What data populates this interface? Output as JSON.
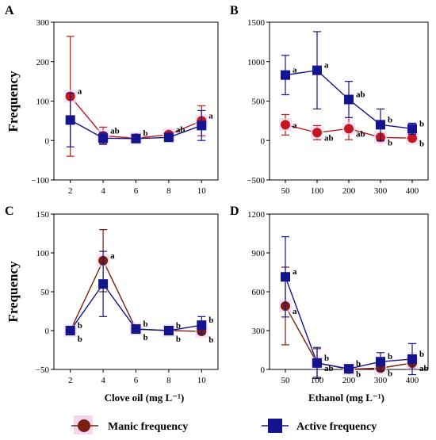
{
  "legend": {
    "manic_label": "Manic frequency",
    "active_label": "Active frequency"
  },
  "colors": {
    "manic_A_B": "#c0181e",
    "manic_C_D": "#7b1e12",
    "active": "#14148c",
    "halo": "#f1d6ee"
  },
  "y_title": "Frequency",
  "chart_data": [
    {
      "panel": "A",
      "type": "line",
      "xlabel": "",
      "ylabel": "Frequency",
      "x": [
        "2",
        "4",
        "6",
        "8",
        "10"
      ],
      "ylim": [
        -100,
        300
      ],
      "yticks": [
        -100,
        0,
        100,
        200,
        300
      ],
      "series": [
        {
          "name": "Manic frequency",
          "color_key": "manic_A_B",
          "marker": "circle",
          "values": [
            112,
            12,
            6,
            15,
            50
          ],
          "err": [
            152,
            22,
            5,
            8,
            38
          ]
        },
        {
          "name": "Active frequency",
          "color_key": "active",
          "marker": "square",
          "values": [
            52,
            6,
            5,
            8,
            38
          ],
          "err": [
            68,
            14,
            4,
            6,
            38
          ]
        }
      ],
      "annotations": [
        "a",
        "ab",
        "b",
        "ab",
        "a"
      ]
    },
    {
      "panel": "B",
      "type": "line",
      "xlabel": "",
      "ylabel": "",
      "x": [
        "50",
        "100",
        "200",
        "300",
        "400"
      ],
      "ylim": [
        -500,
        1500
      ],
      "yticks": [
        -500,
        0,
        500,
        1000,
        1500
      ],
      "series": [
        {
          "name": "Manic frequency",
          "color_key": "manic_A_B",
          "marker": "circle",
          "values": [
            200,
            100,
            150,
            40,
            30
          ],
          "err": [
            130,
            90,
            140,
            50,
            20
          ]
        },
        {
          "name": "Active frequency",
          "color_key": "active",
          "marker": "square",
          "values": [
            830,
            890,
            520,
            200,
            150
          ],
          "err": [
            250,
            490,
            230,
            200,
            70
          ]
        }
      ],
      "annotations": [
        "a",
        "a",
        "ab",
        "b",
        "b"
      ],
      "annotations_manic": [
        "a",
        "ab",
        "ab",
        "b",
        "b"
      ]
    },
    {
      "panel": "C",
      "type": "line",
      "xlabel": "Clove oil (mg L⁻¹)",
      "ylabel": "Frequency",
      "x": [
        "2",
        "4",
        "6",
        "8",
        "10"
      ],
      "ylim": [
        -50,
        150
      ],
      "yticks": [
        -50,
        0,
        50,
        100,
        150
      ],
      "series": [
        {
          "name": "Manic frequency",
          "color_key": "manic_C_D",
          "marker": "circle",
          "values": [
            0,
            90,
            2,
            0,
            -1
          ],
          "err": [
            1,
            40,
            2,
            2,
            2
          ]
        },
        {
          "name": "Active frequency",
          "color_key": "active",
          "marker": "square",
          "values": [
            0,
            60,
            2,
            0,
            7
          ],
          "err": [
            1,
            42,
            2,
            2,
            11
          ]
        }
      ],
      "annotations": [
        "b",
        "a",
        "b",
        "b",
        "b"
      ]
    },
    {
      "panel": "D",
      "type": "line",
      "xlabel": "Ethanol (mg L⁻¹)",
      "ylabel": "",
      "x": [
        "50",
        "100",
        "200",
        "300",
        "400"
      ],
      "ylim": [
        0,
        1200
      ],
      "yticks": [
        0,
        300,
        600,
        900,
        1200
      ],
      "series": [
        {
          "name": "Manic frequency",
          "color_key": "manic_C_D",
          "marker": "circle",
          "values": [
            490,
            50,
            2,
            10,
            50
          ],
          "err": [
            300,
            110,
            5,
            20,
            40
          ]
        },
        {
          "name": "Active frequency",
          "color_key": "active",
          "marker": "square",
          "values": [
            715,
            50,
            5,
            60,
            80
          ],
          "err": [
            310,
            120,
            12,
            70,
            120
          ]
        }
      ],
      "annotations": [
        "a",
        "b",
        "b",
        "b",
        "b"
      ],
      "annotations_manic": [
        "a",
        "ab",
        "b",
        "b",
        "ab"
      ]
    }
  ]
}
